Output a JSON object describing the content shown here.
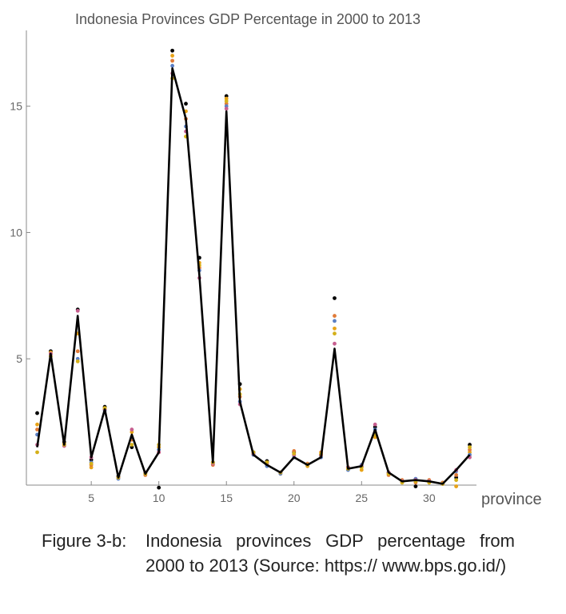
{
  "caption": {
    "label": "Figure 3-b:",
    "text": "Indonesia provinces GDP percentage from 2000 to 2013 (Source: https:// www.bps.go.id/)"
  },
  "chart_data": {
    "type": "line",
    "title": "Indonesia Provinces GDP Percentage in 2000 to 2013",
    "xlabel": "province",
    "ylabel": "",
    "xlim": [
      0.2,
      33.5
    ],
    "ylim": [
      0,
      18
    ],
    "xticks": [
      5,
      10,
      15,
      20,
      25,
      30
    ],
    "yticks": [
      5,
      10,
      15
    ],
    "line_color": "#000000",
    "line": {
      "x": [
        1,
        2,
        3,
        4,
        5,
        6,
        7,
        8,
        9,
        10,
        11,
        12,
        13,
        14,
        15,
        16,
        17,
        18,
        19,
        20,
        21,
        22,
        23,
        24,
        25,
        26,
        27,
        28,
        29,
        30,
        31,
        32,
        33
      ],
      "y": [
        1.5,
        5.2,
        1.6,
        6.7,
        1.1,
        3.0,
        0.3,
        2.0,
        0.45,
        1.3,
        16.5,
        14.5,
        8.3,
        0.9,
        14.8,
        3.3,
        1.2,
        0.8,
        0.5,
        1.1,
        0.8,
        1.1,
        5.4,
        0.65,
        0.75,
        2.2,
        0.5,
        0.15,
        0.2,
        0.15,
        0.05,
        0.6,
        1.2
      ]
    },
    "scatter_colors": [
      "#000000",
      "#e8a317",
      "#e07b39",
      "#5b7fc4",
      "#c75f8f",
      "#d4b01a"
    ],
    "scatter": [
      {
        "x": 1,
        "y": [
          2.85,
          2.4,
          2.2,
          2.0,
          1.6,
          1.3
        ]
      },
      {
        "x": 2,
        "y": [
          5.3,
          5.25,
          5.2,
          5.15,
          5.2,
          5.1
        ]
      },
      {
        "x": 3,
        "y": [
          1.7,
          1.65,
          1.6,
          1.6,
          1.55,
          1.6
        ]
      },
      {
        "x": 4,
        "y": [
          6.95,
          6.0,
          5.3,
          5.0,
          6.9,
          4.9
        ]
      },
      {
        "x": 5,
        "y": [
          1.0,
          0.7,
          0.8,
          0.9,
          1.1,
          0.85
        ]
      },
      {
        "x": 6,
        "y": [
          3.1,
          3.05,
          3.0,
          2.95,
          3.0,
          3.05
        ]
      },
      {
        "x": 7,
        "y": [
          0.35,
          0.3,
          0.3,
          0.25,
          0.3,
          0.3
        ]
      },
      {
        "x": 8,
        "y": [
          1.5,
          2.1,
          1.8,
          1.9,
          2.2,
          1.6
        ]
      },
      {
        "x": 9,
        "y": [
          0.5,
          0.45,
          0.4,
          0.45,
          0.5,
          0.45
        ]
      },
      {
        "x": 10,
        "y": [
          -0.1,
          1.5,
          1.3,
          1.4,
          1.3,
          1.6
        ]
      },
      {
        "x": 11,
        "y": [
          17.2,
          17.0,
          16.8,
          16.6,
          16.3,
          16.1
        ]
      },
      {
        "x": 12,
        "y": [
          15.1,
          14.8,
          14.5,
          14.2,
          14.0,
          13.8
        ]
      },
      {
        "x": 13,
        "y": [
          9.0,
          8.8,
          8.6,
          8.5,
          8.2,
          8.7
        ]
      },
      {
        "x": 14,
        "y": [
          0.9,
          0.85,
          0.8,
          0.9,
          0.85,
          0.9
        ]
      },
      {
        "x": 15,
        "y": [
          15.4,
          15.3,
          15.1,
          15.0,
          14.9,
          15.2
        ]
      },
      {
        "x": 16,
        "y": [
          4.0,
          3.8,
          3.5,
          3.3,
          3.2,
          3.6
        ]
      },
      {
        "x": 17,
        "y": [
          1.3,
          1.25,
          1.2,
          1.2,
          1.25,
          1.3
        ]
      },
      {
        "x": 18,
        "y": [
          0.95,
          0.9,
          0.8,
          0.75,
          0.85,
          0.9
        ]
      },
      {
        "x": 19,
        "y": [
          0.5,
          0.45,
          0.5,
          0.45,
          0.5,
          0.5
        ]
      },
      {
        "x": 20,
        "y": [
          1.3,
          1.2,
          1.35,
          1.1,
          1.2,
          1.25
        ]
      },
      {
        "x": 21,
        "y": [
          0.8,
          0.75,
          0.85,
          0.8,
          0.8,
          0.8
        ]
      },
      {
        "x": 22,
        "y": [
          1.2,
          1.15,
          1.3,
          1.1,
          1.2,
          1.25
        ]
      },
      {
        "x": 23,
        "y": [
          7.4,
          6.2,
          6.7,
          6.5,
          5.6,
          6.0
        ]
      },
      {
        "x": 24,
        "y": [
          0.7,
          0.65,
          0.7,
          0.6,
          0.7,
          0.65
        ]
      },
      {
        "x": 25,
        "y": [
          0.75,
          0.6,
          0.7,
          0.8,
          0.75,
          0.7
        ]
      },
      {
        "x": 26,
        "y": [
          2.3,
          1.9,
          2.1,
          2.2,
          2.4,
          2.0
        ]
      },
      {
        "x": 27,
        "y": [
          0.5,
          0.45,
          0.4,
          0.5,
          0.5,
          0.45
        ]
      },
      {
        "x": 28,
        "y": [
          0.15,
          0.1,
          0.2,
          0.15,
          0.15,
          0.1
        ]
      },
      {
        "x": 29,
        "y": [
          -0.05,
          0.2,
          0.1,
          0.25,
          0.2,
          0.15
        ]
      },
      {
        "x": 30,
        "y": [
          0.15,
          0.1,
          0.2,
          0.15,
          0.15,
          0.1
        ]
      },
      {
        "x": 31,
        "y": [
          0.05,
          0.05,
          0.1,
          0.05,
          0.05,
          0.05
        ]
      },
      {
        "x": 32,
        "y": [
          0.3,
          -0.05,
          0.4,
          0.55,
          0.6,
          0.2
        ]
      },
      {
        "x": 33,
        "y": [
          1.6,
          1.3,
          1.4,
          1.2,
          1.1,
          1.5
        ]
      }
    ]
  }
}
